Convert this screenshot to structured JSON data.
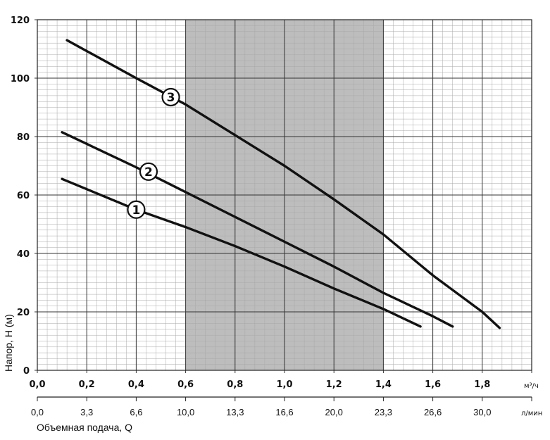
{
  "chart_data": {
    "type": "line",
    "xlabel": "Объемная подача, Q",
    "ylabel": "Напор, Н (м)",
    "x_unit": "м³/ч",
    "x2_unit": "л/мин",
    "xlim": [
      0,
      2.0
    ],
    "ylim": [
      0,
      120
    ],
    "x_ticks": [
      "0,0",
      "0,2",
      "0,4",
      "0,6",
      "0,8",
      "1,0",
      "1,2",
      "1,4",
      "1,6",
      "1,8"
    ],
    "x2_ticks": [
      "0,0",
      "3,3",
      "6,6",
      "10,0",
      "13,3",
      "16,6",
      "20,0",
      "23,3",
      "26,6",
      "30,0"
    ],
    "y_ticks": [
      "0",
      "20",
      "40",
      "60",
      "80",
      "100",
      "120"
    ],
    "grid": true,
    "highlight_region": {
      "x": [
        0.6,
        1.4
      ],
      "color": "#bdbdbd"
    },
    "series": [
      {
        "name": "1",
        "points": [
          [
            0.1,
            65.5
          ],
          [
            0.4,
            55
          ],
          [
            0.6,
            49
          ],
          [
            0.8,
            42.5
          ],
          [
            1.0,
            35.5
          ],
          [
            1.2,
            28
          ],
          [
            1.4,
            21
          ],
          [
            1.55,
            15
          ]
        ]
      },
      {
        "name": "2",
        "points": [
          [
            0.1,
            81.5
          ],
          [
            0.4,
            69.5
          ],
          [
            0.6,
            61
          ],
          [
            0.8,
            52.5
          ],
          [
            1.0,
            44
          ],
          [
            1.2,
            35.5
          ],
          [
            1.4,
            26.5
          ],
          [
            1.6,
            18.5
          ],
          [
            1.68,
            15
          ]
        ]
      },
      {
        "name": "3",
        "points": [
          [
            0.12,
            113
          ],
          [
            0.4,
            100
          ],
          [
            0.6,
            91
          ],
          [
            0.8,
            80.5
          ],
          [
            1.0,
            70
          ],
          [
            1.2,
            58.5
          ],
          [
            1.4,
            46.5
          ],
          [
            1.6,
            32.5
          ],
          [
            1.8,
            20
          ],
          [
            1.87,
            14.5
          ]
        ]
      }
    ],
    "labels": [
      {
        "text": "1",
        "x": 0.4,
        "y": 55
      },
      {
        "text": "2",
        "x": 0.45,
        "y": 68
      },
      {
        "text": "3",
        "x": 0.54,
        "y": 93.5
      }
    ]
  }
}
